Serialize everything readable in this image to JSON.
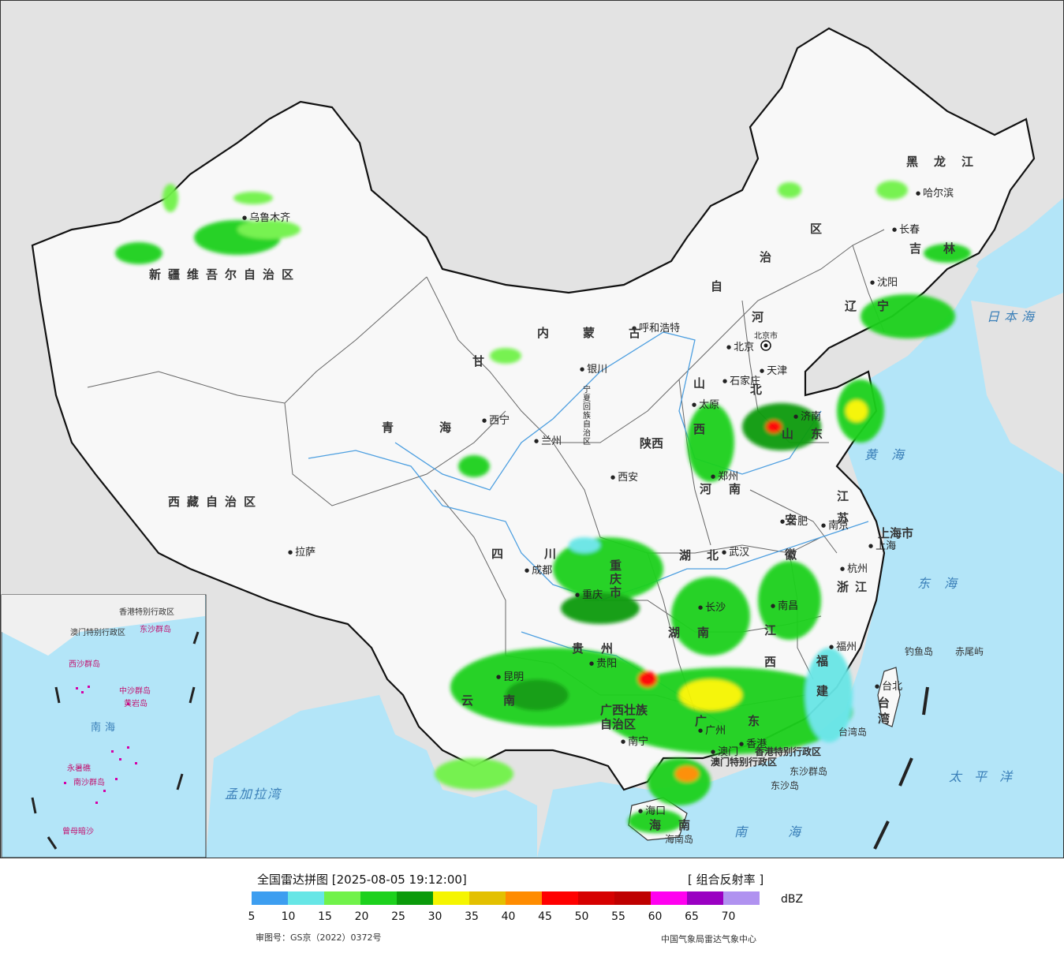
{
  "map": {
    "capital": "北京",
    "beijing_city_label": "北京市",
    "cities": [
      {
        "id": "urumqi",
        "name": "乌鲁木齐"
      },
      {
        "id": "lhasa",
        "name": "拉萨"
      },
      {
        "id": "xining",
        "name": "西宁"
      },
      {
        "id": "lanzhou",
        "name": "兰州"
      },
      {
        "id": "yinchuan",
        "name": "银川"
      },
      {
        "id": "hohhot",
        "name": "呼和浩特"
      },
      {
        "id": "taiyuan",
        "name": "太原"
      },
      {
        "id": "shijiazhuang",
        "name": "石家庄"
      },
      {
        "id": "tianjin",
        "name": "天津"
      },
      {
        "id": "harbin",
        "name": "哈尔滨"
      },
      {
        "id": "changchun",
        "name": "长春"
      },
      {
        "id": "shenyang",
        "name": "沈阳"
      },
      {
        "id": "jinan",
        "name": "济南"
      },
      {
        "id": "zhengzhou",
        "name": "郑州"
      },
      {
        "id": "xian",
        "name": "西安"
      },
      {
        "id": "hefei",
        "name": "合肥"
      },
      {
        "id": "nanjing",
        "name": "南京"
      },
      {
        "id": "shanghai",
        "name": "上海"
      },
      {
        "id": "hangzhou",
        "name": "杭州"
      },
      {
        "id": "wuhan",
        "name": "武汉"
      },
      {
        "id": "chengdu",
        "name": "成都"
      },
      {
        "id": "chongqing",
        "name": "重庆"
      },
      {
        "id": "changsha",
        "name": "长沙"
      },
      {
        "id": "nanchang",
        "name": "南昌"
      },
      {
        "id": "fuzhou",
        "name": "福州"
      },
      {
        "id": "taibei",
        "name": "台北"
      },
      {
        "id": "guiyang",
        "name": "贵阳"
      },
      {
        "id": "kunming",
        "name": "昆明"
      },
      {
        "id": "nanning",
        "name": "南宁"
      },
      {
        "id": "guangzhou",
        "name": "广州"
      },
      {
        "id": "haikou",
        "name": "海口"
      },
      {
        "id": "hongkong",
        "name": "香港"
      },
      {
        "id": "macau",
        "name": "澳门"
      }
    ],
    "provinces": [
      {
        "id": "xinjiang",
        "name": "新疆维吾尔自治区"
      },
      {
        "id": "xizang",
        "name": "西藏自治区"
      },
      {
        "id": "qinghai",
        "name": "青海"
      },
      {
        "id": "gansu",
        "name": "甘"
      },
      {
        "id": "neimenggu1",
        "name": "内　蒙　古"
      },
      {
        "id": "neimenggu2",
        "name": "自"
      },
      {
        "id": "neimenggu3",
        "name": "治"
      },
      {
        "id": "neimenggu4",
        "name": "区"
      },
      {
        "id": "heilongjiang",
        "name": "黑龙江"
      },
      {
        "id": "jilin",
        "name": "吉林"
      },
      {
        "id": "liaoning",
        "name": "辽宁"
      },
      {
        "id": "hebei1",
        "name": "河"
      },
      {
        "id": "hebei2",
        "name": "北"
      },
      {
        "id": "shanxi1",
        "name": "山"
      },
      {
        "id": "shanxi2",
        "name": "西"
      },
      {
        "id": "shandong",
        "name": "山东"
      },
      {
        "id": "henan",
        "name": "河南"
      },
      {
        "id": "shaanxi",
        "name": "陕西"
      },
      {
        "id": "ningxia",
        "name": "宁夏回族自治区"
      },
      {
        "id": "sichuan",
        "name": "四川"
      },
      {
        "id": "chongqing_p",
        "name": "重庆市"
      },
      {
        "id": "hubei",
        "name": "湖北"
      },
      {
        "id": "hunan",
        "name": "湖南"
      },
      {
        "id": "anhui",
        "name": "安徽"
      },
      {
        "id": "jiangsu",
        "name": "江苏"
      },
      {
        "id": "shanghai_p",
        "name": "上海市"
      },
      {
        "id": "zhejiang",
        "name": "浙江"
      },
      {
        "id": "jiangxi",
        "name": "江西"
      },
      {
        "id": "fujian",
        "name": "福建"
      },
      {
        "id": "taiwan",
        "name": "台湾"
      },
      {
        "id": "guizhou",
        "name": "贵州"
      },
      {
        "id": "yunnan",
        "name": "云南"
      },
      {
        "id": "guangxi",
        "name": "广西壮族自治区"
      },
      {
        "id": "guangdong",
        "name": "广东"
      },
      {
        "id": "hainan",
        "name": "海南"
      },
      {
        "id": "hk_sar",
        "name": "香港特别行政区"
      },
      {
        "id": "macau_sar",
        "name": "澳门特别行政区"
      }
    ],
    "seas": [
      {
        "id": "riben",
        "name": "日本海"
      },
      {
        "id": "huanghai",
        "name": "黄海"
      },
      {
        "id": "donghai",
        "name": "东海"
      },
      {
        "id": "taipingyang",
        "name": "太平洋"
      },
      {
        "id": "nanhai",
        "name": "南海"
      },
      {
        "id": "mengjiala",
        "name": "孟加拉湾"
      }
    ],
    "islands": [
      {
        "id": "diaoyu",
        "name": "钓鱼岛"
      },
      {
        "id": "chiwei",
        "name": "赤尾屿"
      },
      {
        "id": "dongsha_qd",
        "name": "东沙群岛"
      },
      {
        "id": "dongsha_d",
        "name": "东沙岛"
      },
      {
        "id": "hainan_d",
        "name": "海南岛"
      },
      {
        "id": "taiwan_d",
        "name": "台湾岛"
      }
    ],
    "inset": {
      "labels": [
        {
          "id": "i_hk",
          "name": "香港特别行政区"
        },
        {
          "id": "i_macau",
          "name": "澳门特别行政区"
        },
        {
          "id": "i_dongsha",
          "name": "东沙群岛"
        },
        {
          "id": "i_xisha",
          "name": "西沙群岛"
        },
        {
          "id": "i_zhongsha",
          "name": "中沙群岛"
        },
        {
          "id": "i_huangyan",
          "name": "黄岩岛"
        },
        {
          "id": "i_nansha",
          "name": "南沙群岛"
        },
        {
          "id": "i_zengmu",
          "name": "曾母暗沙"
        },
        {
          "id": "i_yongshu",
          "name": "永暑礁"
        }
      ],
      "sea": "南海"
    }
  },
  "legend": {
    "title": "全国雷达拼图 [2025-08-05 19:12:00]",
    "product": "[ 组合反射率 ]",
    "unit": "dBZ",
    "colors": [
      "#3d9ef0",
      "#67e6e6",
      "#71f24a",
      "#1dd11d",
      "#0b9b0b",
      "#f5f500",
      "#e3c000",
      "#ff8c00",
      "#ff0000",
      "#d60000",
      "#bf0000",
      "#ff00f0",
      "#9a00c2",
      "#b092f0"
    ],
    "ticks": [
      "5",
      "10",
      "15",
      "20",
      "25",
      "30",
      "35",
      "40",
      "45",
      "50",
      "55",
      "60",
      "65",
      "70"
    ],
    "review_no": "审图号：GS京（2022）0372号",
    "agency": "中国气象局雷达气象中心"
  }
}
